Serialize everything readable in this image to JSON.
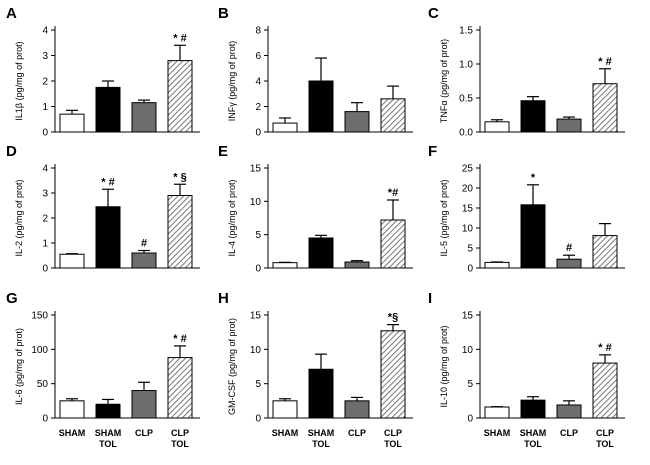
{
  "figure": {
    "group_labels": [
      "SHAM",
      "SHAM\nTOL",
      "CLP",
      "CLP\nTOL"
    ]
  },
  "colors": {
    "sham": "#ffffff",
    "sham_tol": "#000000",
    "clp": "#6e6e6e",
    "clp_tol": "hatch"
  },
  "chart_data": [
    {
      "type": "bar",
      "panel": "A",
      "ylabel": "IL1β (pg/mg of prot)",
      "ylim": [
        0,
        4
      ],
      "yticks": [
        0,
        1,
        2,
        3,
        4
      ],
      "categories": [
        "SHAM",
        "SHAM TOL",
        "CLP",
        "CLP TOL"
      ],
      "values": [
        0.7,
        1.75,
        1.15,
        2.8
      ],
      "errors": [
        0.15,
        0.25,
        0.1,
        0.6
      ],
      "annotations": [
        "",
        "",
        "",
        "* #"
      ]
    },
    {
      "type": "bar",
      "panel": "B",
      "ylabel": "INFγ (pg/mg of prot)",
      "ylim": [
        0,
        8
      ],
      "yticks": [
        0,
        2,
        4,
        6,
        8
      ],
      "categories": [
        "SHAM",
        "SHAM TOL",
        "CLP",
        "CLP TOL"
      ],
      "values": [
        0.7,
        4.0,
        1.6,
        2.6
      ],
      "errors": [
        0.4,
        1.8,
        0.7,
        1.0
      ],
      "annotations": [
        "",
        "",
        "",
        ""
      ]
    },
    {
      "type": "bar",
      "panel": "C",
      "ylabel": "TNFα (pg/mg of prot)",
      "ylim": [
        0,
        1.5
      ],
      "yticks": [
        0,
        0.5,
        1.0,
        1.5
      ],
      "ytick_labels": [
        "0.0",
        "0.5",
        "1.0",
        "1.5"
      ],
      "categories": [
        "SHAM",
        "SHAM TOL",
        "CLP",
        "CLP TOL"
      ],
      "values": [
        0.15,
        0.46,
        0.19,
        0.71
      ],
      "errors": [
        0.03,
        0.06,
        0.03,
        0.22
      ],
      "annotations": [
        "",
        "",
        "",
        "* #"
      ]
    },
    {
      "type": "bar",
      "panel": "D",
      "ylabel": "IL-2 (pg/mg of prot)",
      "ylim": [
        0,
        4
      ],
      "yticks": [
        0,
        1,
        2,
        3,
        4
      ],
      "categories": [
        "SHAM",
        "SHAM TOL",
        "CLP",
        "CLP TOL"
      ],
      "values": [
        0.55,
        2.45,
        0.6,
        2.9
      ],
      "errors": [
        0.02,
        0.7,
        0.1,
        0.45
      ],
      "annotations": [
        "",
        "* #",
        "#",
        "* §"
      ]
    },
    {
      "type": "bar",
      "panel": "E",
      "ylabel": "IL-4 (pg/mg of prot)",
      "ylim": [
        0,
        15
      ],
      "yticks": [
        0,
        5,
        10,
        15
      ],
      "categories": [
        "SHAM",
        "SHAM TOL",
        "CLP",
        "CLP TOL"
      ],
      "values": [
        0.8,
        4.5,
        0.9,
        7.2
      ],
      "errors": [
        0.05,
        0.4,
        0.2,
        3.0
      ],
      "annotations": [
        "",
        "",
        "",
        "*#"
      ]
    },
    {
      "type": "bar",
      "panel": "F",
      "ylabel": "IL-5 (pg/mg of prot)",
      "ylim": [
        0,
        25
      ],
      "yticks": [
        0,
        5,
        10,
        15,
        20,
        25
      ],
      "categories": [
        "SHAM",
        "SHAM TOL",
        "CLP",
        "CLP TOL"
      ],
      "values": [
        1.4,
        15.8,
        2.2,
        8.1
      ],
      "errors": [
        0.1,
        5.0,
        1.0,
        3.0
      ],
      "annotations": [
        "",
        "*",
        "#",
        ""
      ]
    },
    {
      "type": "bar",
      "panel": "G",
      "ylabel": "IL-6 (pg/mg of prot)",
      "ylim": [
        0,
        150
      ],
      "yticks": [
        0,
        50,
        100,
        150
      ],
      "categories": [
        "SHAM",
        "SHAM TOL",
        "CLP",
        "CLP TOL"
      ],
      "values": [
        25,
        20,
        40,
        88
      ],
      "errors": [
        3,
        7,
        12,
        17
      ],
      "annotations": [
        "",
        "",
        "",
        "* #"
      ]
    },
    {
      "type": "bar",
      "panel": "H",
      "ylabel": "GM-CSF (pg/mg of prot)",
      "ylim": [
        0,
        15
      ],
      "yticks": [
        0,
        5,
        10,
        15
      ],
      "categories": [
        "SHAM",
        "SHAM TOL",
        "CLP",
        "CLP TOL"
      ],
      "values": [
        2.5,
        7.1,
        2.5,
        12.7
      ],
      "errors": [
        0.3,
        2.2,
        0.5,
        0.9
      ],
      "annotations": [
        "",
        "",
        "",
        "*§"
      ]
    },
    {
      "type": "bar",
      "panel": "I",
      "ylabel": "IL-10 (pg/mg of prot)",
      "ylim": [
        0,
        15
      ],
      "yticks": [
        0,
        5,
        10,
        15
      ],
      "categories": [
        "SHAM",
        "SHAM TOL",
        "CLP",
        "CLP TOL"
      ],
      "values": [
        1.6,
        2.6,
        1.9,
        8.0
      ],
      "errors": [
        0.05,
        0.5,
        0.6,
        1.2
      ],
      "annotations": [
        "",
        "",
        "",
        "* #"
      ]
    }
  ]
}
